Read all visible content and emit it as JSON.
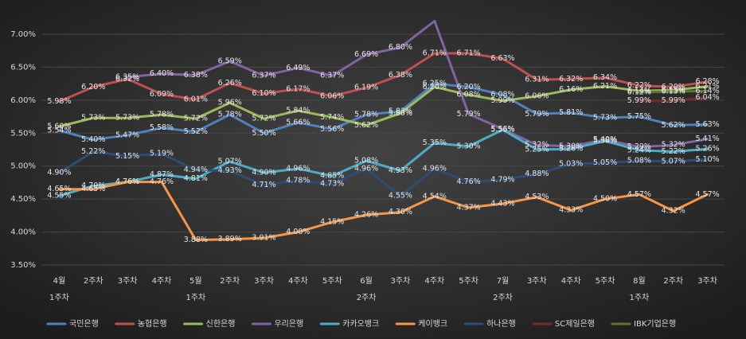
{
  "chart_data": {
    "type": "line",
    "categories": [
      "4월\n1주차",
      "2주차",
      "3주차",
      "4주차",
      "5월\n1주차",
      "2주차",
      "3주차",
      "4주차",
      "5주차",
      "6월\n2주차",
      "3주차",
      "4주차",
      "5주차",
      "7월\n2주차",
      "3주차",
      "4주차",
      "5주차",
      "8월\n1주차",
      "2주차",
      "3주차"
    ],
    "ylim": [
      3.5,
      7.0
    ],
    "yticks": [
      {
        "value": 3.5,
        "label": "3.50%"
      },
      {
        "value": 4.0,
        "label": "4.00%"
      },
      {
        "value": 4.5,
        "label": "4.50%"
      },
      {
        "value": 5.0,
        "label": "5.00%"
      },
      {
        "value": 5.5,
        "label": "5.50%"
      },
      {
        "value": 6.0,
        "label": "6.00%"
      },
      {
        "value": 6.5,
        "label": "6.50%"
      },
      {
        "value": 7.0,
        "label": "7.00%"
      }
    ],
    "grid": true,
    "legend": "bottom",
    "series": [
      {
        "name": "국민은행",
        "color": "#4f81bd",
        "values": [
          5.54,
          5.4,
          5.47,
          5.58,
          5.52,
          5.78,
          5.5,
          5.66,
          5.56,
          5.78,
          5.83,
          6.25,
          6.2,
          6.08,
          5.79,
          5.81,
          5.73,
          5.75,
          5.62,
          5.63
        ],
        "value_labels": [
          "5.54%",
          "5.40%",
          "5.47%",
          "5.58%",
          "5.52%",
          "5.78%",
          "5.50%",
          "5.66%",
          "5.56%",
          "5.78%",
          "5.83%",
          "6.25%",
          "6.20%",
          "6.08%",
          "5.79%",
          "5.81%",
          "5.73%",
          "5.75%",
          "5.62%",
          "5.63%"
        ]
      },
      {
        "name": "농협은행",
        "color": "#c0504d",
        "values": [
          5.98,
          6.2,
          6.32,
          6.09,
          6.01,
          6.26,
          6.1,
          6.17,
          6.06,
          6.19,
          6.38,
          6.71,
          6.71,
          6.63,
          6.31,
          6.32,
          6.34,
          6.22,
          6.2,
          6.28
        ],
        "value_labels": [
          "5.98%",
          "6.20%",
          "6.32%",
          "6.09%",
          "6.01%",
          "6.26%",
          "6.10%",
          "6.17%",
          "6.06%",
          "6.19%",
          "6.38%",
          "6.71%",
          "6.71%",
          "6.63%",
          "6.31%",
          "6.32%",
          "6.34%",
          "6.22%",
          "6.20%",
          "6.28%"
        ]
      },
      {
        "name": "신한은행",
        "color": "#9bbb59",
        "values": [
          5.6,
          5.73,
          5.73,
          5.78,
          5.72,
          5.96,
          5.72,
          5.84,
          5.74,
          5.62,
          5.8,
          6.2,
          6.08,
          5.99,
          6.06,
          6.16,
          6.21,
          6.14,
          6.15,
          6.21
        ],
        "value_labels": [
          "5.60%",
          "5.73%",
          "5.73%",
          "5.78%",
          "5.72%",
          "5.96%",
          "5.72%",
          "5.84%",
          "5.74%",
          "5.62%",
          "5.80%",
          "6.20%",
          "6.08%",
          "5.99%",
          "6.06%",
          "6.16%",
          "6.21%",
          "6.14%",
          "6.15%",
          "6.21%"
        ]
      },
      {
        "name": "우리은행",
        "color": "#8064a2",
        "values": [
          null,
          null,
          6.35,
          6.4,
          6.38,
          6.59,
          6.37,
          6.49,
          6.37,
          6.69,
          6.8,
          7.2,
          5.79,
          5.56,
          5.32,
          5.3,
          5.4,
          5.29,
          5.32,
          5.41
        ],
        "value_labels": [
          null,
          null,
          "6.35%",
          "6.40%",
          "6.38%",
          "6.59%",
          "6.37%",
          "6.49%",
          "6.37%",
          "6.69%",
          "6.80%",
          null,
          "5.79%",
          "5.56%",
          "5.32%",
          "5.30%",
          "5.40%",
          "5.29%",
          "5.32%",
          "5.41%"
        ]
      },
      {
        "name": "카카오뱅크",
        "color": "#4bacc6",
        "values": [
          4.55,
          4.7,
          4.76,
          4.87,
          4.81,
          5.07,
          4.9,
          4.96,
          4.85,
          5.08,
          4.93,
          5.35,
          5.3,
          5.55,
          5.25,
          5.26,
          5.38,
          5.24,
          5.22,
          5.26
        ],
        "value_labels": [
          "4.55%",
          "4.70%",
          "4.76%",
          "4.87%",
          "4.81%",
          "5.07%",
          "4.90%",
          "4.96%",
          "4.85%",
          "5.08%",
          "4.93%",
          "5.35%",
          "5.30%",
          "5.55%",
          "5.25%",
          "5.26%",
          "5.38%",
          "5.24%",
          "5.22%",
          "5.26%"
        ]
      },
      {
        "name": "케이뱅크",
        "color": "#f79646",
        "values": [
          4.65,
          4.65,
          4.76,
          4.76,
          3.88,
          3.89,
          3.91,
          4.0,
          4.15,
          4.26,
          4.3,
          4.54,
          4.37,
          4.43,
          4.53,
          4.33,
          4.5,
          4.57,
          4.32,
          4.57
        ],
        "value_labels": [
          "4.65%",
          "4.65%",
          "4.76%",
          "4.76%",
          "3.88%",
          "3.89%",
          "3.91%",
          "4.00%",
          "4.15%",
          "4.26%",
          "4.30%",
          "4.54%",
          "4.37%",
          "4.43%",
          "4.53%",
          "4.33%",
          "4.50%",
          "4.57%",
          "4.32%",
          "4.57%"
        ]
      },
      {
        "name": "하나은행",
        "color": "#2c4d75",
        "values": [
          4.9,
          5.22,
          5.15,
          5.19,
          4.94,
          4.93,
          4.71,
          4.78,
          4.73,
          4.96,
          4.55,
          4.96,
          4.76,
          4.79,
          4.88,
          5.03,
          5.05,
          5.08,
          5.07,
          5.1
        ],
        "value_labels": [
          "4.90%",
          "5.22%",
          "5.15%",
          "5.19%",
          "4.94%",
          "4.93%",
          "4.71%",
          "4.78%",
          "4.73%",
          "4.96%",
          "4.55%",
          "4.96%",
          "4.76%",
          "4.79%",
          "4.88%",
          "5.03%",
          "5.05%",
          "5.08%",
          "5.07%",
          "5.10%"
        ]
      },
      {
        "name": "SC제일은행",
        "color": "#772c2a",
        "values": [
          null,
          null,
          null,
          null,
          null,
          null,
          null,
          null,
          null,
          null,
          null,
          null,
          null,
          null,
          null,
          null,
          null,
          5.99,
          5.99,
          6.04
        ],
        "value_labels": [
          null,
          null,
          null,
          null,
          null,
          null,
          null,
          null,
          null,
          null,
          null,
          null,
          null,
          null,
          null,
          null,
          null,
          "5.99%",
          "5.99%",
          "6.04%"
        ]
      },
      {
        "name": "IBK기업은행",
        "color": "#5f7530",
        "values": [
          null,
          null,
          null,
          null,
          null,
          null,
          null,
          null,
          null,
          null,
          null,
          null,
          null,
          null,
          null,
          null,
          null,
          6.12,
          6.13,
          6.14
        ],
        "value_labels": [
          null,
          null,
          null,
          null,
          null,
          null,
          null,
          null,
          null,
          null,
          null,
          null,
          null,
          null,
          null,
          null,
          null,
          "6.12%",
          "6.13%",
          "6.14%"
        ]
      }
    ]
  }
}
